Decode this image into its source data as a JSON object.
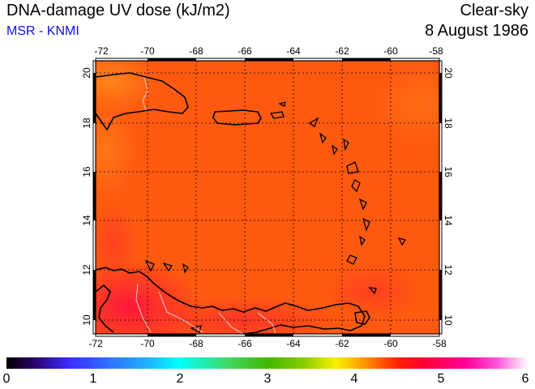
{
  "header": {
    "title": "DNA-damage UV dose (kJ/m2)",
    "subtitle": "MSR - KNMI",
    "sky": "Clear-sky",
    "date": "8 August 1986"
  },
  "map": {
    "lon_ticks": [
      "-72",
      "-70",
      "-68",
      "-66",
      "-64",
      "-62",
      "-60",
      "-58"
    ],
    "lat_ticks": [
      "20",
      "18",
      "16",
      "14",
      "12",
      "10"
    ],
    "lon_range": [
      -72,
      -58
    ],
    "lat_range": [
      9.5,
      20.5
    ],
    "grid": "dotted",
    "field_color": "#ff5a10"
  },
  "colorbar": {
    "labels": [
      "0",
      "1",
      "2",
      "3",
      "4",
      "5",
      "6"
    ],
    "range": [
      0,
      6
    ]
  }
}
